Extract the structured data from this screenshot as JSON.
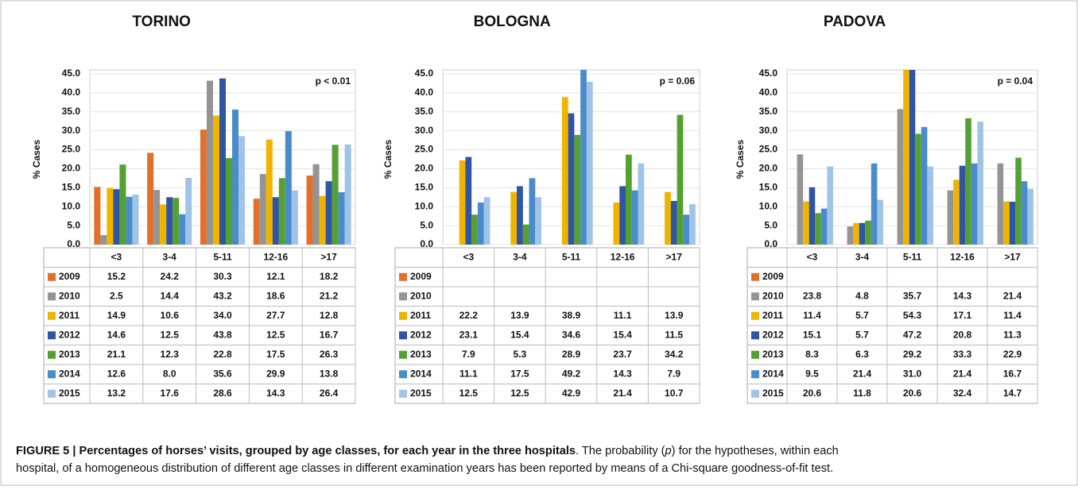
{
  "chart_data": [
    {
      "type": "bar",
      "title": "TORINO",
      "y_label": "% Cases",
      "annotation": "p < 0.01",
      "grid": true,
      "categories": [
        "<3",
        "3-4",
        "5-11",
        "12-16",
        ">17"
      ],
      "ylim": [
        0,
        45
      ],
      "yticks": [
        {
          "value": 0,
          "label": "0.0"
        },
        {
          "value": 5,
          "label": "5.0"
        },
        {
          "value": 10,
          "label": "10.0"
        },
        {
          "value": 15,
          "label": "15.0"
        },
        {
          "value": 20,
          "label": "20.0"
        },
        {
          "value": 25,
          "label": "25.0"
        },
        {
          "value": 30,
          "label": "30.0"
        },
        {
          "value": 35,
          "label": "35.0"
        },
        {
          "value": 40,
          "label": "40.0"
        },
        {
          "value": 45,
          "label": "45.0"
        }
      ],
      "series": [
        {
          "name": "2009",
          "color": "#e2702a",
          "values": [
            15.2,
            24.2,
            30.3,
            12.1,
            18.2
          ],
          "value_labels": [
            "15.2",
            "24.2",
            "30.3",
            "12.1",
            "18.2"
          ]
        },
        {
          "name": "2010",
          "color": "#949494",
          "values": [
            2.5,
            14.4,
            43.2,
            18.6,
            21.2
          ],
          "value_labels": [
            "2.5",
            "14.4",
            "43.2",
            "18.6",
            "21.2"
          ]
        },
        {
          "name": "2011",
          "color": "#f0b400",
          "values": [
            14.9,
            10.6,
            34.0,
            27.7,
            12.8
          ],
          "value_labels": [
            "14.9",
            "10.6",
            "34.0",
            "27.7",
            "12.8"
          ]
        },
        {
          "name": "2012",
          "color": "#2f55a4",
          "values": [
            14.6,
            12.5,
            43.8,
            12.5,
            16.7
          ],
          "value_labels": [
            "14.6",
            "12.5",
            "43.8",
            "12.5",
            "16.7"
          ]
        },
        {
          "name": "2013",
          "color": "#55a033",
          "values": [
            21.1,
            12.3,
            22.8,
            17.5,
            26.3
          ],
          "value_labels": [
            "21.1",
            "12.3",
            "22.8",
            "17.5",
            "26.3"
          ]
        },
        {
          "name": "2014",
          "color": "#4a8bc9",
          "values": [
            12.6,
            8.0,
            35.6,
            29.9,
            13.8
          ],
          "value_labels": [
            "12.6",
            "8.0",
            "35.6",
            "29.9",
            "13.8"
          ]
        },
        {
          "name": "2015",
          "color": "#a0c4e8",
          "values": [
            13.2,
            17.6,
            28.6,
            14.3,
            26.4
          ],
          "value_labels": [
            "13.2",
            "17.6",
            "28.6",
            "14.3",
            "26.4"
          ]
        }
      ]
    },
    {
      "type": "bar",
      "title": "BOLOGNA",
      "y_label": "% Cases",
      "annotation": "p = 0.06",
      "grid": true,
      "categories": [
        "<3",
        "3-4",
        "5-11",
        "12-16",
        ">17"
      ],
      "ylim": [
        0,
        45
      ],
      "yticks": [
        {
          "value": 0,
          "label": "0.0"
        },
        {
          "value": 5,
          "label": "5.0"
        },
        {
          "value": 10,
          "label": "10.0"
        },
        {
          "value": 15,
          "label": "15.0"
        },
        {
          "value": 20,
          "label": "20.0"
        },
        {
          "value": 25,
          "label": "25.0"
        },
        {
          "value": 30,
          "label": "30.0"
        },
        {
          "value": 35,
          "label": "35.0"
        },
        {
          "value": 40,
          "label": "40.0"
        },
        {
          "value": 45,
          "label": "45.0"
        }
      ],
      "series": [
        {
          "name": "2009",
          "color": "#e2702a",
          "values": [
            null,
            null,
            null,
            null,
            null
          ],
          "value_labels": [
            null,
            null,
            null,
            null,
            null
          ]
        },
        {
          "name": "2010",
          "color": "#949494",
          "values": [
            null,
            null,
            null,
            null,
            null
          ],
          "value_labels": [
            null,
            null,
            null,
            null,
            null
          ]
        },
        {
          "name": "2011",
          "color": "#f0b400",
          "values": [
            22.2,
            13.9,
            38.9,
            11.1,
            13.9
          ],
          "value_labels": [
            "22.2",
            "13.9",
            "38.9",
            "11.1",
            "13.9"
          ]
        },
        {
          "name": "2012",
          "color": "#2f55a4",
          "values": [
            23.1,
            15.4,
            34.6,
            15.4,
            11.5
          ],
          "value_labels": [
            "23.1",
            "15.4",
            "34.6",
            "15.4",
            "11.5"
          ]
        },
        {
          "name": "2013",
          "color": "#55a033",
          "values": [
            7.9,
            5.3,
            28.9,
            23.7,
            34.2
          ],
          "value_labels": [
            "7.9",
            "5.3",
            "28.9",
            "23.7",
            "34.2"
          ]
        },
        {
          "name": "2014",
          "color": "#4a8bc9",
          "values": [
            11.1,
            17.5,
            49.2,
            14.3,
            7.9
          ],
          "value_labels": [
            "11.1",
            "17.5",
            "49.2",
            "14.3",
            "7.9"
          ]
        },
        {
          "name": "2015",
          "color": "#a0c4e8",
          "values": [
            12.5,
            12.5,
            42.9,
            21.4,
            10.7
          ],
          "value_labels": [
            "12.5",
            "12.5",
            "42.9",
            "21.4",
            "10.7"
          ]
        }
      ]
    },
    {
      "type": "bar",
      "title": "PADOVA",
      "y_label": "% Cases",
      "annotation": "p = 0.04",
      "grid": true,
      "categories": [
        "<3",
        "3-4",
        "5-11",
        "12-16",
        ">17"
      ],
      "ylim": [
        0,
        45
      ],
      "yticks": [
        {
          "value": 0,
          "label": "0.0"
        },
        {
          "value": 5,
          "label": "5.0"
        },
        {
          "value": 10,
          "label": "10.0"
        },
        {
          "value": 15,
          "label": "15.0"
        },
        {
          "value": 20,
          "label": "20.0"
        },
        {
          "value": 25,
          "label": "25.0"
        },
        {
          "value": 30,
          "label": "30.0"
        },
        {
          "value": 35,
          "label": "35.0"
        },
        {
          "value": 40,
          "label": "40.0"
        },
        {
          "value": 45,
          "label": "45.0"
        }
      ],
      "series": [
        {
          "name": "2009",
          "color": "#e2702a",
          "values": [
            null,
            null,
            null,
            null,
            null
          ],
          "value_labels": [
            null,
            null,
            null,
            null,
            null
          ]
        },
        {
          "name": "2010",
          "color": "#949494",
          "values": [
            23.8,
            4.8,
            35.7,
            14.3,
            21.4
          ],
          "value_labels": [
            "23.8",
            "4.8",
            "35.7",
            "14.3",
            "21.4"
          ]
        },
        {
          "name": "2011",
          "color": "#f0b400",
          "values": [
            11.4,
            5.7,
            54.3,
            17.1,
            11.4
          ],
          "value_labels": [
            "11.4",
            "5.7",
            "54.3",
            "17.1",
            "11.4"
          ]
        },
        {
          "name": "2012",
          "color": "#2f55a4",
          "values": [
            15.1,
            5.7,
            47.2,
            20.8,
            11.3
          ],
          "value_labels": [
            "15.1",
            "5.7",
            "47.2",
            "20.8",
            "11.3"
          ]
        },
        {
          "name": "2013",
          "color": "#55a033",
          "values": [
            8.3,
            6.3,
            29.2,
            33.3,
            22.9
          ],
          "value_labels": [
            "8.3",
            "6.3",
            "29.2",
            "33.3",
            "22.9"
          ]
        },
        {
          "name": "2014",
          "color": "#4a8bc9",
          "values": [
            9.5,
            21.4,
            31.0,
            21.4,
            16.7
          ],
          "value_labels": [
            "9.5",
            "21.4",
            "31.0",
            "21.4",
            "16.7"
          ]
        },
        {
          "name": "2015",
          "color": "#a0c4e8",
          "values": [
            20.6,
            11.8,
            20.6,
            32.4,
            14.7
          ],
          "value_labels": [
            "20.6",
            "11.8",
            "20.6",
            "32.4",
            "14.7"
          ]
        }
      ]
    }
  ],
  "caption": {
    "label": "FIGURE 5 |",
    "title": "Percentages of horses’ visits, grouped by age classes, for each year in the three hospitals",
    "text": [
      ". The probability (",
      "p",
      ") for the hypotheses, within each",
      "hospital, of a homogeneous distribution of different age classes in different examination years has been reported by means of a Chi-square goodness-of-fit test."
    ]
  }
}
